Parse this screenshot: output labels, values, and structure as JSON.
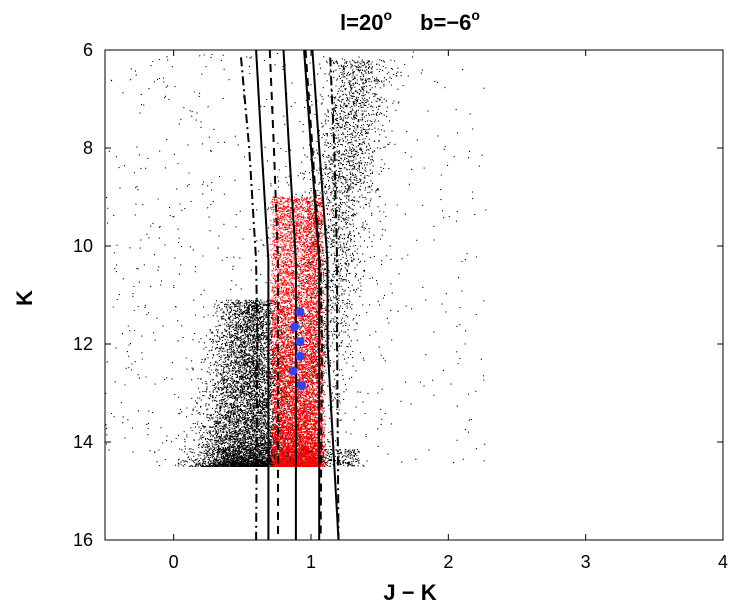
{
  "chart_data": {
    "type": "scatter",
    "title": {
      "l_label": "l=20",
      "l_sup": "o",
      "b_label": "b=−6",
      "b_sup": "o"
    },
    "xlabel": "J − K",
    "ylabel": "K",
    "xlim": [
      -0.5,
      4
    ],
    "ylim": [
      6,
      16
    ],
    "y_inverted": true,
    "x_ticks": [
      0,
      1,
      2,
      3,
      4
    ],
    "y_ticks": [
      6,
      8,
      10,
      12,
      14,
      16
    ],
    "grid": false,
    "legend": "none",
    "colors": {
      "field_stars": "#000000",
      "red_clump": "#ff0000",
      "blue_points": "#3344ee",
      "curves": "#000000"
    },
    "magnitude_limit": 14.5,
    "field_population": {
      "description_hidden": true,
      "dense_region": {
        "x_center": 0.55,
        "x_spread": 0.18,
        "y_min": 12.6,
        "y_max": 14.5
      },
      "upper_branch": {
        "x_start": 0.95,
        "x_end": 1.35,
        "y_start": 14.5,
        "y_end": 6.2
      },
      "sparse_range": {
        "x_min": -0.5,
        "x_max": 2.3
      }
    },
    "red_clump_region": {
      "x_min": 0.72,
      "x_max": 1.08,
      "y_min": 9.0,
      "y_max": 14.5
    },
    "blue_points": [
      {
        "x": 0.92,
        "y": 11.35
      },
      {
        "x": 0.88,
        "y": 11.65
      },
      {
        "x": 0.92,
        "y": 11.95
      },
      {
        "x": 0.92,
        "y": 12.25
      },
      {
        "x": 0.87,
        "y": 12.55
      },
      {
        "x": 0.93,
        "y": 12.85
      }
    ],
    "series": [
      {
        "style": "dashdot",
        "points": [
          [
            0.49,
            6.15
          ],
          [
            0.55,
            8.0
          ],
          [
            0.6,
            10.3
          ],
          [
            0.61,
            12.0
          ],
          [
            0.6,
            16.0
          ]
        ]
      },
      {
        "style": "solid",
        "points": [
          [
            0.6,
            6.0
          ],
          [
            0.64,
            8.0
          ],
          [
            0.69,
            10.3
          ],
          [
            0.69,
            12.0
          ],
          [
            0.69,
            16.0
          ]
        ]
      },
      {
        "style": "dashed",
        "points": [
          [
            0.7,
            6.0
          ],
          [
            0.73,
            8.0
          ],
          [
            0.76,
            10.3
          ],
          [
            0.76,
            12.0
          ],
          [
            0.76,
            16.0
          ]
        ]
      },
      {
        "style": "solid",
        "points": [
          [
            0.8,
            6.0
          ],
          [
            0.84,
            8.0
          ],
          [
            0.89,
            10.3
          ],
          [
            0.89,
            12.0
          ],
          [
            0.89,
            16.0
          ]
        ]
      },
      {
        "style": "solid",
        "points": [
          [
            0.95,
            6.0
          ],
          [
            1.0,
            8.0
          ],
          [
            1.06,
            10.3
          ],
          [
            1.06,
            12.0
          ],
          [
            1.06,
            16.0
          ]
        ]
      },
      {
        "style": "dashed",
        "points": [
          [
            0.96,
            6.0
          ],
          [
            1.01,
            8.0
          ],
          [
            1.07,
            10.5
          ],
          [
            1.08,
            12.0
          ],
          [
            1.07,
            16.0
          ]
        ]
      },
      {
        "style": "solid",
        "points": [
          [
            1.01,
            6.0
          ],
          [
            1.06,
            8.0
          ],
          [
            1.12,
            10.3
          ],
          [
            1.12,
            12.0
          ],
          [
            1.2,
            16.0
          ]
        ]
      },
      {
        "style": "dashdot",
        "points": [
          [
            1.14,
            6.15
          ],
          [
            1.17,
            8.0
          ],
          [
            1.19,
            10.3
          ],
          [
            1.19,
            12.0
          ],
          [
            1.2,
            16.0
          ]
        ]
      }
    ]
  }
}
